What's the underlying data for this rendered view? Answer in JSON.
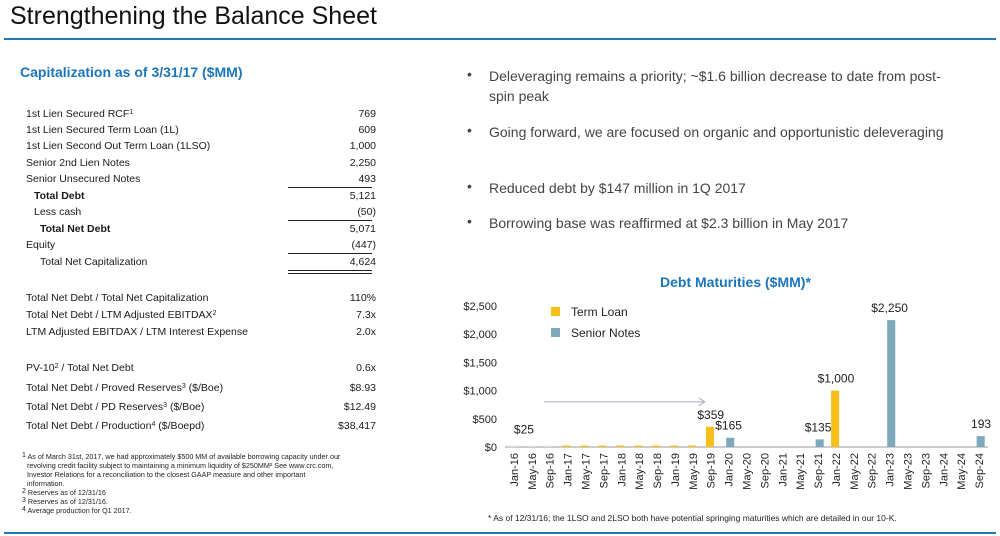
{
  "page": {
    "title": "Strengthening the Balance Sheet"
  },
  "capitalization": {
    "heading": "Capitalization as of 3/31/17 ($MM)",
    "rows": [
      {
        "label": "1st Lien Secured RCF",
        "sup": "1",
        "value": "769"
      },
      {
        "label": "1st Lien Secured Term Loan (1L)",
        "value": "609"
      },
      {
        "label": "1st Lien Second Out Term Loan (1LSO)",
        "value": "1,000"
      },
      {
        "label": "Senior 2nd Lien Notes",
        "value": "2,250"
      },
      {
        "label": "Senior Unsecured Notes",
        "value": "493"
      },
      {
        "label": "Total Debt",
        "value": "5,121"
      },
      {
        "label": "Less cash",
        "value": "(50)"
      },
      {
        "label": "Total Net Debt",
        "value": "5,071"
      },
      {
        "label": "Equity",
        "value": "(447)"
      },
      {
        "label": "Total Net Capitalization",
        "value": "4,624"
      }
    ],
    "ratios": [
      {
        "label": "Total Net Debt / Total Net Capitalization",
        "value": "110%"
      },
      {
        "label": "Total Net Debt / LTM Adjusted EBITDAX",
        "sup": "2",
        "value": "7.3x"
      },
      {
        "label": "LTM Adjusted EBITDAX / LTM Interest Expense",
        "value": "2.0x"
      }
    ],
    "reserves": [
      {
        "label": "PV-10",
        "sup": "2",
        "label_after": " / Total Net Debt",
        "value": "0.6x"
      },
      {
        "label": "Total Net Debt / Proved Reserves",
        "sup": "3",
        "label_after": " ($/Boe)",
        "value": "$8.93"
      },
      {
        "label": "Total Net Debt / PD Reserves",
        "sup": "3",
        "label_after": " ($/Boe)",
        "value": "$12.49"
      },
      {
        "label": "Total Net Debt / Production",
        "sup": "4",
        "label_after": " ($/Boepd)",
        "value": "$38,417"
      }
    ],
    "footnotes": [
      {
        "sup": "1",
        "text": " As of March 31st, 2017,  we had approximately $500 MM of available borrowing capacity under our"
      },
      {
        "sup": "",
        "text": "revolving credit facility subject to maintaining a minimum liquidity of $250MM² See www.crc.com,"
      },
      {
        "sup": "",
        "text": "Investor Relations for a reconciliation to the closest GAAP measure and other important"
      },
      {
        "sup": "",
        "text": "information."
      },
      {
        "sup": "2",
        "text": " Reserves as of 12/31/16"
      },
      {
        "sup": "3",
        "text": " Reserves as of 12/31/16."
      },
      {
        "sup": "4",
        "text": " Average production for Q1 2017."
      }
    ]
  },
  "bullets": [
    {
      "dot": "•",
      "text": "Deleveraging remains a priority; ~$1.6 billion decrease to date from post-spin peak"
    },
    {
      "dot": "•",
      "text": "Going forward, we are focused on organic and opportunistic deleveraging"
    },
    {
      "dot": "•",
      "text": "Reduced debt by $147 million in 1Q 2017"
    },
    {
      "dot": "•",
      "text": "Borrowing base was reaffirmed at $2.3 billion in May 2017"
    }
  ],
  "chart_data": {
    "type": "bar",
    "title": "Debt Maturities ($MM)*",
    "categories": [
      "Jan-16",
      "May-16",
      "Sep-16",
      "Jan-17",
      "May-17",
      "Sep-17",
      "Jan-18",
      "May-18",
      "Sep-18",
      "Jan-19",
      "May-19",
      "Sep-19",
      "Jan-20",
      "May-20",
      "Sep-20",
      "Jan-21",
      "May-21",
      "Sep-21",
      "Jan-22",
      "May-22",
      "Sep-22",
      "Jan-23",
      "May-23",
      "Sep-23",
      "Jan-24",
      "May-24",
      "Sep-24"
    ],
    "series": [
      {
        "name": "Term Loan",
        "color": "#f7bf1a",
        "values": [
          25,
          25,
          25,
          25,
          25,
          25,
          25,
          25,
          25,
          25,
          25,
          359,
          0,
          0,
          0,
          0,
          0,
          0,
          1000,
          0,
          0,
          0,
          0,
          0,
          0,
          0,
          0
        ]
      },
      {
        "name": "Senior Notes",
        "color": "#7fa8bd",
        "values": [
          0,
          0,
          0,
          0,
          0,
          0,
          0,
          0,
          0,
          0,
          0,
          0,
          165,
          0,
          0,
          0,
          0,
          135,
          0,
          0,
          0,
          2250,
          0,
          0,
          0,
          0,
          193
        ]
      }
    ],
    "early_series": {
      "color": "#dde3e6",
      "value": 25,
      "categories_count": 3
    },
    "yticks": [
      "$0",
      "$500",
      "$1,000",
      "$1,500",
      "$2,000",
      "$2,500"
    ],
    "ylim": [
      0,
      2500
    ],
    "data_labels": [
      "$25",
      "$359",
      "$165",
      "$135",
      "$1,000",
      "$2,250",
      "193"
    ],
    "legend_position": "top-left",
    "footnote": "* As of 12/31/16; the 1LSO and 2LSO both have potential springing maturities which are detailed in our 10-K."
  }
}
